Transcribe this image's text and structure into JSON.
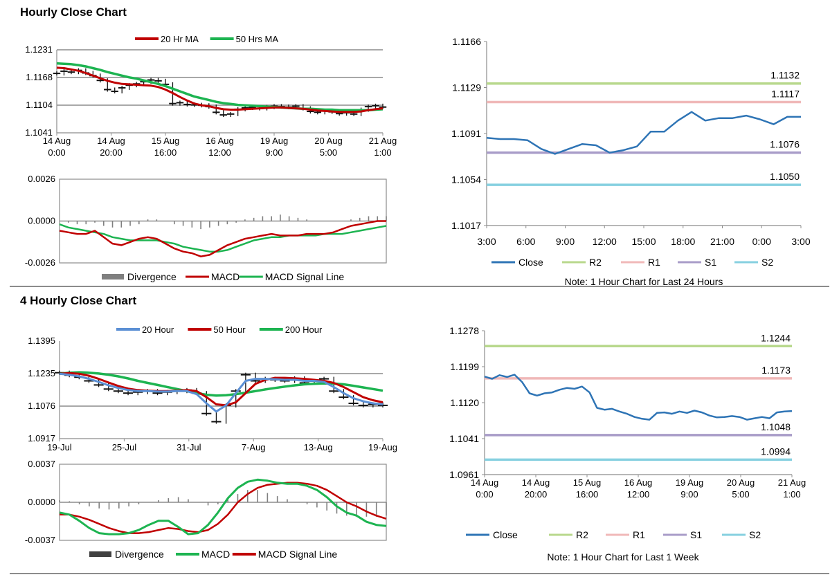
{
  "sections": {
    "hourly_title": "Hourly Close Chart",
    "four_hourly_title": "4 Hourly Close Chart"
  },
  "colors": {
    "blue": "#2e74b5",
    "lightblue": "#5b8fd4",
    "red": "#c00000",
    "green": "#1db451",
    "r2": "#b8d88c",
    "r1": "#f0b8b8",
    "s1": "#a89cc8",
    "s2": "#86d0e0",
    "grid": "#8c8c8c",
    "div": "#7f7f7f"
  },
  "chart_data": [
    {
      "id": "hourly-ma",
      "type": "line",
      "title": "Hourly Close Chart",
      "legend_top": [
        "20 Hr MA",
        "50 Hrs MA"
      ],
      "ylim": [
        1.1041,
        1.1231
      ],
      "y_ticks": [
        "1.1231",
        "1.1168",
        "1.1104",
        "1.1041"
      ],
      "x_ticks": [
        [
          "14 Aug",
          "0:00"
        ],
        [
          "14 Aug",
          "20:00"
        ],
        [
          "15 Aug",
          "16:00"
        ],
        [
          "16 Aug",
          "12:00"
        ],
        [
          "19 Aug",
          "9:00"
        ],
        [
          "20 Aug",
          "5:00"
        ],
        [
          "21 Aug",
          "1:00"
        ]
      ],
      "series": [
        {
          "name": "Close",
          "values": [
            1.1177,
            1.1182,
            1.118,
            1.1184,
            1.1178,
            1.1172,
            1.1161,
            1.114,
            1.1136,
            1.1144,
            1.115,
            1.1153,
            1.1158,
            1.1162,
            1.116,
            1.1152,
            1.1108,
            1.111,
            1.1106,
            1.1105,
            1.1104,
            1.1101,
            1.1088,
            1.1082,
            1.1084,
            1.1095,
            1.1098,
            1.1099,
            1.1097,
            1.11,
            1.1102,
            1.1101,
            1.11,
            1.1102,
            1.1097,
            1.109,
            1.1088,
            1.1091,
            1.1089,
            1.1085,
            1.1087,
            1.1084,
            1.1094,
            1.1101,
            1.1103,
            1.11
          ]
        },
        {
          "name": "20 Hr MA",
          "values": [
            1.119,
            1.1189,
            1.1186,
            1.1183,
            1.1178,
            1.1172,
            1.1166,
            1.116,
            1.1156,
            1.1153,
            1.1152,
            1.1151,
            1.115,
            1.1149,
            1.1146,
            1.114,
            1.1132,
            1.1123,
            1.1115,
            1.1108,
            1.1104,
            1.1102,
            1.1098,
            1.1095,
            1.1094,
            1.1094,
            1.1095,
            1.1096,
            1.1097,
            1.1098,
            1.1099,
            1.1099,
            1.1098,
            1.1097,
            1.1096,
            1.1094,
            1.1092,
            1.1091,
            1.109,
            1.1089,
            1.1089,
            1.1089,
            1.109,
            1.1093,
            1.1095,
            1.1097
          ]
        },
        {
          "name": "50 Hrs MA",
          "values": [
            1.12,
            1.1199,
            1.1198,
            1.1196,
            1.1193,
            1.1189,
            1.1185,
            1.118,
            1.1176,
            1.1172,
            1.1168,
            1.1165,
            1.1161,
            1.1157,
            1.1153,
            1.1148,
            1.1142,
            1.1136,
            1.113,
            1.1124,
            1.112,
            1.1116,
            1.1112,
            1.1109,
            1.1107,
            1.1105,
            1.1104,
            1.1103,
            1.1102,
            1.1101,
            1.11,
            1.1099,
            1.1098,
            1.1097,
            1.1096,
            1.1096,
            1.1095,
            1.1094,
            1.1094,
            1.1093,
            1.1093,
            1.1093,
            1.1093,
            1.1093,
            1.1094,
            1.1095
          ]
        }
      ]
    },
    {
      "id": "hourly-macd",
      "type": "line",
      "ylim": [
        -0.0026,
        0.0026
      ],
      "y_ticks": [
        "0.0026",
        "0.0000",
        "-0.0026"
      ],
      "legend": [
        "Divergence",
        "MACD",
        "MACD Signal Line"
      ],
      "series": [
        {
          "name": "Divergence",
          "values": [
            0.0,
            -0.0001,
            -0.0002,
            -0.0002,
            -0.0001,
            -0.0003,
            -0.0004,
            -0.0004,
            -0.0003,
            -0.0002,
            0.0001,
            0.0001,
            0.0,
            -0.0002,
            -0.0003,
            -0.0004,
            -0.0005,
            -0.0004,
            -0.0003,
            -0.0002,
            -0.0001,
            0.0001,
            0.0002,
            0.0003,
            0.0003,
            0.0004,
            0.0003,
            0.0002,
            0.0001,
            0.0,
            0.0,
            0.0,
            0.0,
            0.0001,
            0.0002,
            0.0003,
            0.0003,
            0.0003
          ]
        },
        {
          "name": "MACD",
          "values": [
            -0.0006,
            -0.0007,
            -0.0008,
            -0.0008,
            -0.0006,
            -0.001,
            -0.0014,
            -0.0015,
            -0.0013,
            -0.0011,
            -0.001,
            -0.0011,
            -0.0014,
            -0.0017,
            -0.0019,
            -0.002,
            -0.0022,
            -0.0021,
            -0.0018,
            -0.0015,
            -0.0013,
            -0.0011,
            -0.001,
            -0.0009,
            -0.0008,
            -0.0009,
            -0.0009,
            -0.0009,
            -0.0008,
            -0.0008,
            -0.0008,
            -0.0007,
            -0.0005,
            -0.0003,
            -0.0002,
            -0.0001,
            0.0,
            0.0
          ]
        },
        {
          "name": "MACD Signal Line",
          "values": [
            -0.0002,
            -0.0004,
            -0.0005,
            -0.0006,
            -0.0007,
            -0.0008,
            -0.001,
            -0.0011,
            -0.0012,
            -0.0012,
            -0.0012,
            -0.0012,
            -0.0013,
            -0.0014,
            -0.0016,
            -0.0017,
            -0.0018,
            -0.0019,
            -0.0019,
            -0.0018,
            -0.0016,
            -0.0014,
            -0.0012,
            -0.0011,
            -0.001,
            -0.001,
            -0.0009,
            -0.0009,
            -0.0009,
            -0.0009,
            -0.0008,
            -0.0008,
            -0.0008,
            -0.0007,
            -0.0006,
            -0.0005,
            -0.0004,
            -0.0003
          ]
        }
      ]
    },
    {
      "id": "hourly-24h",
      "type": "line",
      "ylim": [
        1.1017,
        1.1166
      ],
      "y_ticks": [
        "1.1166",
        "1.1129",
        "1.1091",
        "1.1054",
        "1.1017"
      ],
      "x_ticks": [
        "3:00",
        "6:00",
        "9:00",
        "12:00",
        "15:00",
        "18:00",
        "21:00",
        "0:00",
        "3:00"
      ],
      "levels": [
        {
          "name": "R2",
          "value": 1.1132,
          "label": "1.1132"
        },
        {
          "name": "R1",
          "value": 1.1117,
          "label": "1.1117"
        },
        {
          "name": "S1",
          "value": 1.1076,
          "label": "1.1076"
        },
        {
          "name": "S2",
          "value": 1.105,
          "label": "1.1050"
        }
      ],
      "series": [
        {
          "name": "Close",
          "values": [
            1.1088,
            1.1087,
            1.1087,
            1.1086,
            1.1079,
            1.1075,
            1.1079,
            1.1083,
            1.1082,
            1.1076,
            1.1078,
            1.1081,
            1.1093,
            1.1093,
            1.1102,
            1.1109,
            1.1102,
            1.1104,
            1.1104,
            1.1106,
            1.1103,
            1.1099,
            1.1105,
            1.1105
          ]
        }
      ],
      "legend": [
        "Close",
        "R2",
        "R1",
        "S1",
        "S2"
      ],
      "note": "Note: 1 Hour Chart for Last 24 Hours"
    },
    {
      "id": "four-hourly-ma",
      "type": "line",
      "title": "4 Hourly Close Chart",
      "legend_top": [
        "20 Hour",
        "50 Hour",
        "200 Hour"
      ],
      "ylim": [
        1.0917,
        1.1395
      ],
      "y_ticks": [
        "1.1395",
        "1.1235",
        "1.1076",
        "1.0917"
      ],
      "x_ticks": [
        "19-Jul",
        "25-Jul",
        "31-Jul",
        "7-Aug",
        "13-Aug",
        "19-Aug"
      ],
      "series": [
        {
          "name": "Close",
          "values": [
            1.124,
            1.1228,
            1.1218,
            1.12,
            1.118,
            1.116,
            1.115,
            1.114,
            1.1145,
            1.115,
            1.114,
            1.1145,
            1.115,
            1.1155,
            1.114,
            1.104,
            1.1,
            1.108,
            1.115,
            1.123,
            1.12,
            1.121,
            1.1205,
            1.12,
            1.1212,
            1.119,
            1.12,
            1.121,
            1.115,
            1.112,
            1.109,
            1.108,
            1.1085,
            1.108
          ]
        },
        {
          "name": "20 Hour",
          "values": [
            1.1235,
            1.123,
            1.1222,
            1.121,
            1.1195,
            1.1178,
            1.1165,
            1.1155,
            1.115,
            1.115,
            1.1148,
            1.1148,
            1.115,
            1.115,
            1.1135,
            1.109,
            1.105,
            1.108,
            1.114,
            1.12,
            1.121,
            1.121,
            1.1208,
            1.1205,
            1.1205,
            1.12,
            1.12,
            1.1195,
            1.117,
            1.114,
            1.1115,
            1.11,
            1.109,
            1.1085
          ]
        },
        {
          "name": "50 Hour",
          "values": [
            1.1235,
            1.1238,
            1.1235,
            1.1225,
            1.121,
            1.1192,
            1.1175,
            1.1162,
            1.1155,
            1.1152,
            1.115,
            1.115,
            1.1152,
            1.1155,
            1.115,
            1.112,
            1.1085,
            1.108,
            1.1095,
            1.114,
            1.1185,
            1.1205,
            1.1215,
            1.1215,
            1.1213,
            1.121,
            1.1205,
            1.12,
            1.119,
            1.117,
            1.1145,
            1.112,
            1.1105,
            1.1095
          ]
        },
        {
          "name": "200 Hour",
          "values": [
            1.1235,
            1.124,
            1.1242,
            1.124,
            1.1236,
            1.123,
            1.1222,
            1.1212,
            1.12,
            1.119,
            1.118,
            1.117,
            1.116,
            1.115,
            1.114,
            1.1132,
            1.1128,
            1.113,
            1.1135,
            1.1142,
            1.115,
            1.1158,
            1.1165,
            1.1172,
            1.1178,
            1.1183,
            1.1186,
            1.1188,
            1.1187,
            1.1183,
            1.1176,
            1.1168,
            1.116,
            1.1152
          ]
        }
      ]
    },
    {
      "id": "four-hourly-macd",
      "type": "line",
      "ylim": [
        -0.0037,
        0.0037
      ],
      "y_ticks": [
        "0.0037",
        "0.0000",
        "-0.0037"
      ],
      "legend": [
        "Divergence",
        "MACD",
        "MACD Signal Line"
      ],
      "series": [
        {
          "name": "Divergence",
          "values": [
            0.0002,
            0.0001,
            -0.0002,
            -0.0004,
            -0.0006,
            -0.0007,
            -0.0006,
            -0.0004,
            -0.0002,
            0.0,
            0.0002,
            0.0004,
            0.0005,
            0.0003,
            0.0,
            -0.0003,
            -0.0002,
            0.0003,
            0.0008,
            0.0012,
            0.0012,
            0.0009,
            0.0006,
            0.0003,
            0.0,
            -0.0002,
            -0.0005,
            -0.0008,
            -0.0011,
            -0.0013,
            -0.0014,
            -0.0014,
            -0.0014,
            -0.0013
          ]
        },
        {
          "name": "MACD",
          "values": [
            -0.001,
            -0.0012,
            -0.0018,
            -0.0025,
            -0.003,
            -0.0031,
            -0.0031,
            -0.003,
            -0.0027,
            -0.0022,
            -0.0018,
            -0.0018,
            -0.0024,
            -0.0031,
            -0.003,
            -0.0022,
            -0.001,
            0.0004,
            0.0014,
            0.002,
            0.0022,
            0.0021,
            0.0019,
            0.0018,
            0.0018,
            0.0016,
            0.0012,
            0.0005,
            -0.0004,
            -0.001,
            -0.0013,
            -0.0019,
            -0.0022,
            -0.0023
          ]
        },
        {
          "name": "MACD Signal Line",
          "values": [
            -0.0012,
            -0.0012,
            -0.0014,
            -0.0017,
            -0.0021,
            -0.0025,
            -0.0028,
            -0.003,
            -0.003,
            -0.0029,
            -0.0027,
            -0.0025,
            -0.0026,
            -0.0028,
            -0.0029,
            -0.0027,
            -0.0021,
            -0.0012,
            0.0,
            0.0008,
            0.0014,
            0.0017,
            0.0018,
            0.0019,
            0.0019,
            0.0018,
            0.0016,
            0.0012,
            0.0006,
            0.0,
            -0.0004,
            -0.0009,
            -0.0013,
            -0.0016
          ]
        }
      ]
    },
    {
      "id": "four-hourly-week",
      "type": "line",
      "ylim": [
        1.0961,
        1.1278
      ],
      "y_ticks": [
        "1.1278",
        "1.1199",
        "1.1120",
        "1.1041",
        "1.0961"
      ],
      "x_ticks": [
        [
          "14 Aug",
          "0:00"
        ],
        [
          "14 Aug",
          "20:00"
        ],
        [
          "15 Aug",
          "16:00"
        ],
        [
          "16 Aug",
          "12:00"
        ],
        [
          "19 Aug",
          "9:00"
        ],
        [
          "20 Aug",
          "5:00"
        ],
        [
          "21 Aug",
          "1:00"
        ]
      ],
      "levels": [
        {
          "name": "R2",
          "value": 1.1244,
          "label": "1.1244"
        },
        {
          "name": "R1",
          "value": 1.1173,
          "label": "1.1173"
        },
        {
          "name": "S1",
          "value": 1.1048,
          "label": "1.1048"
        },
        {
          "name": "S2",
          "value": 1.0994,
          "label": "1.0994"
        }
      ],
      "series": [
        {
          "name": "Close",
          "values": [
            1.1177,
            1.1172,
            1.118,
            1.1176,
            1.1181,
            1.1165,
            1.114,
            1.1135,
            1.114,
            1.1142,
            1.1148,
            1.1152,
            1.115,
            1.1155,
            1.1142,
            1.1108,
            1.1104,
            1.1106,
            1.11,
            1.1095,
            1.1088,
            1.1084,
            1.1082,
            1.1097,
            1.1098,
            1.1095,
            1.11,
            1.1097,
            1.1102,
            1.1098,
            1.1091,
            1.1087,
            1.1088,
            1.109,
            1.1088,
            1.1082,
            1.1085,
            1.1088,
            1.1085,
            1.1098,
            1.11,
            1.1101
          ]
        }
      ],
      "legend": [
        "Close",
        "R2",
        "R1",
        "S1",
        "S2"
      ],
      "note": "Note: 1 Hour Chart for Last 1 Week"
    }
  ]
}
